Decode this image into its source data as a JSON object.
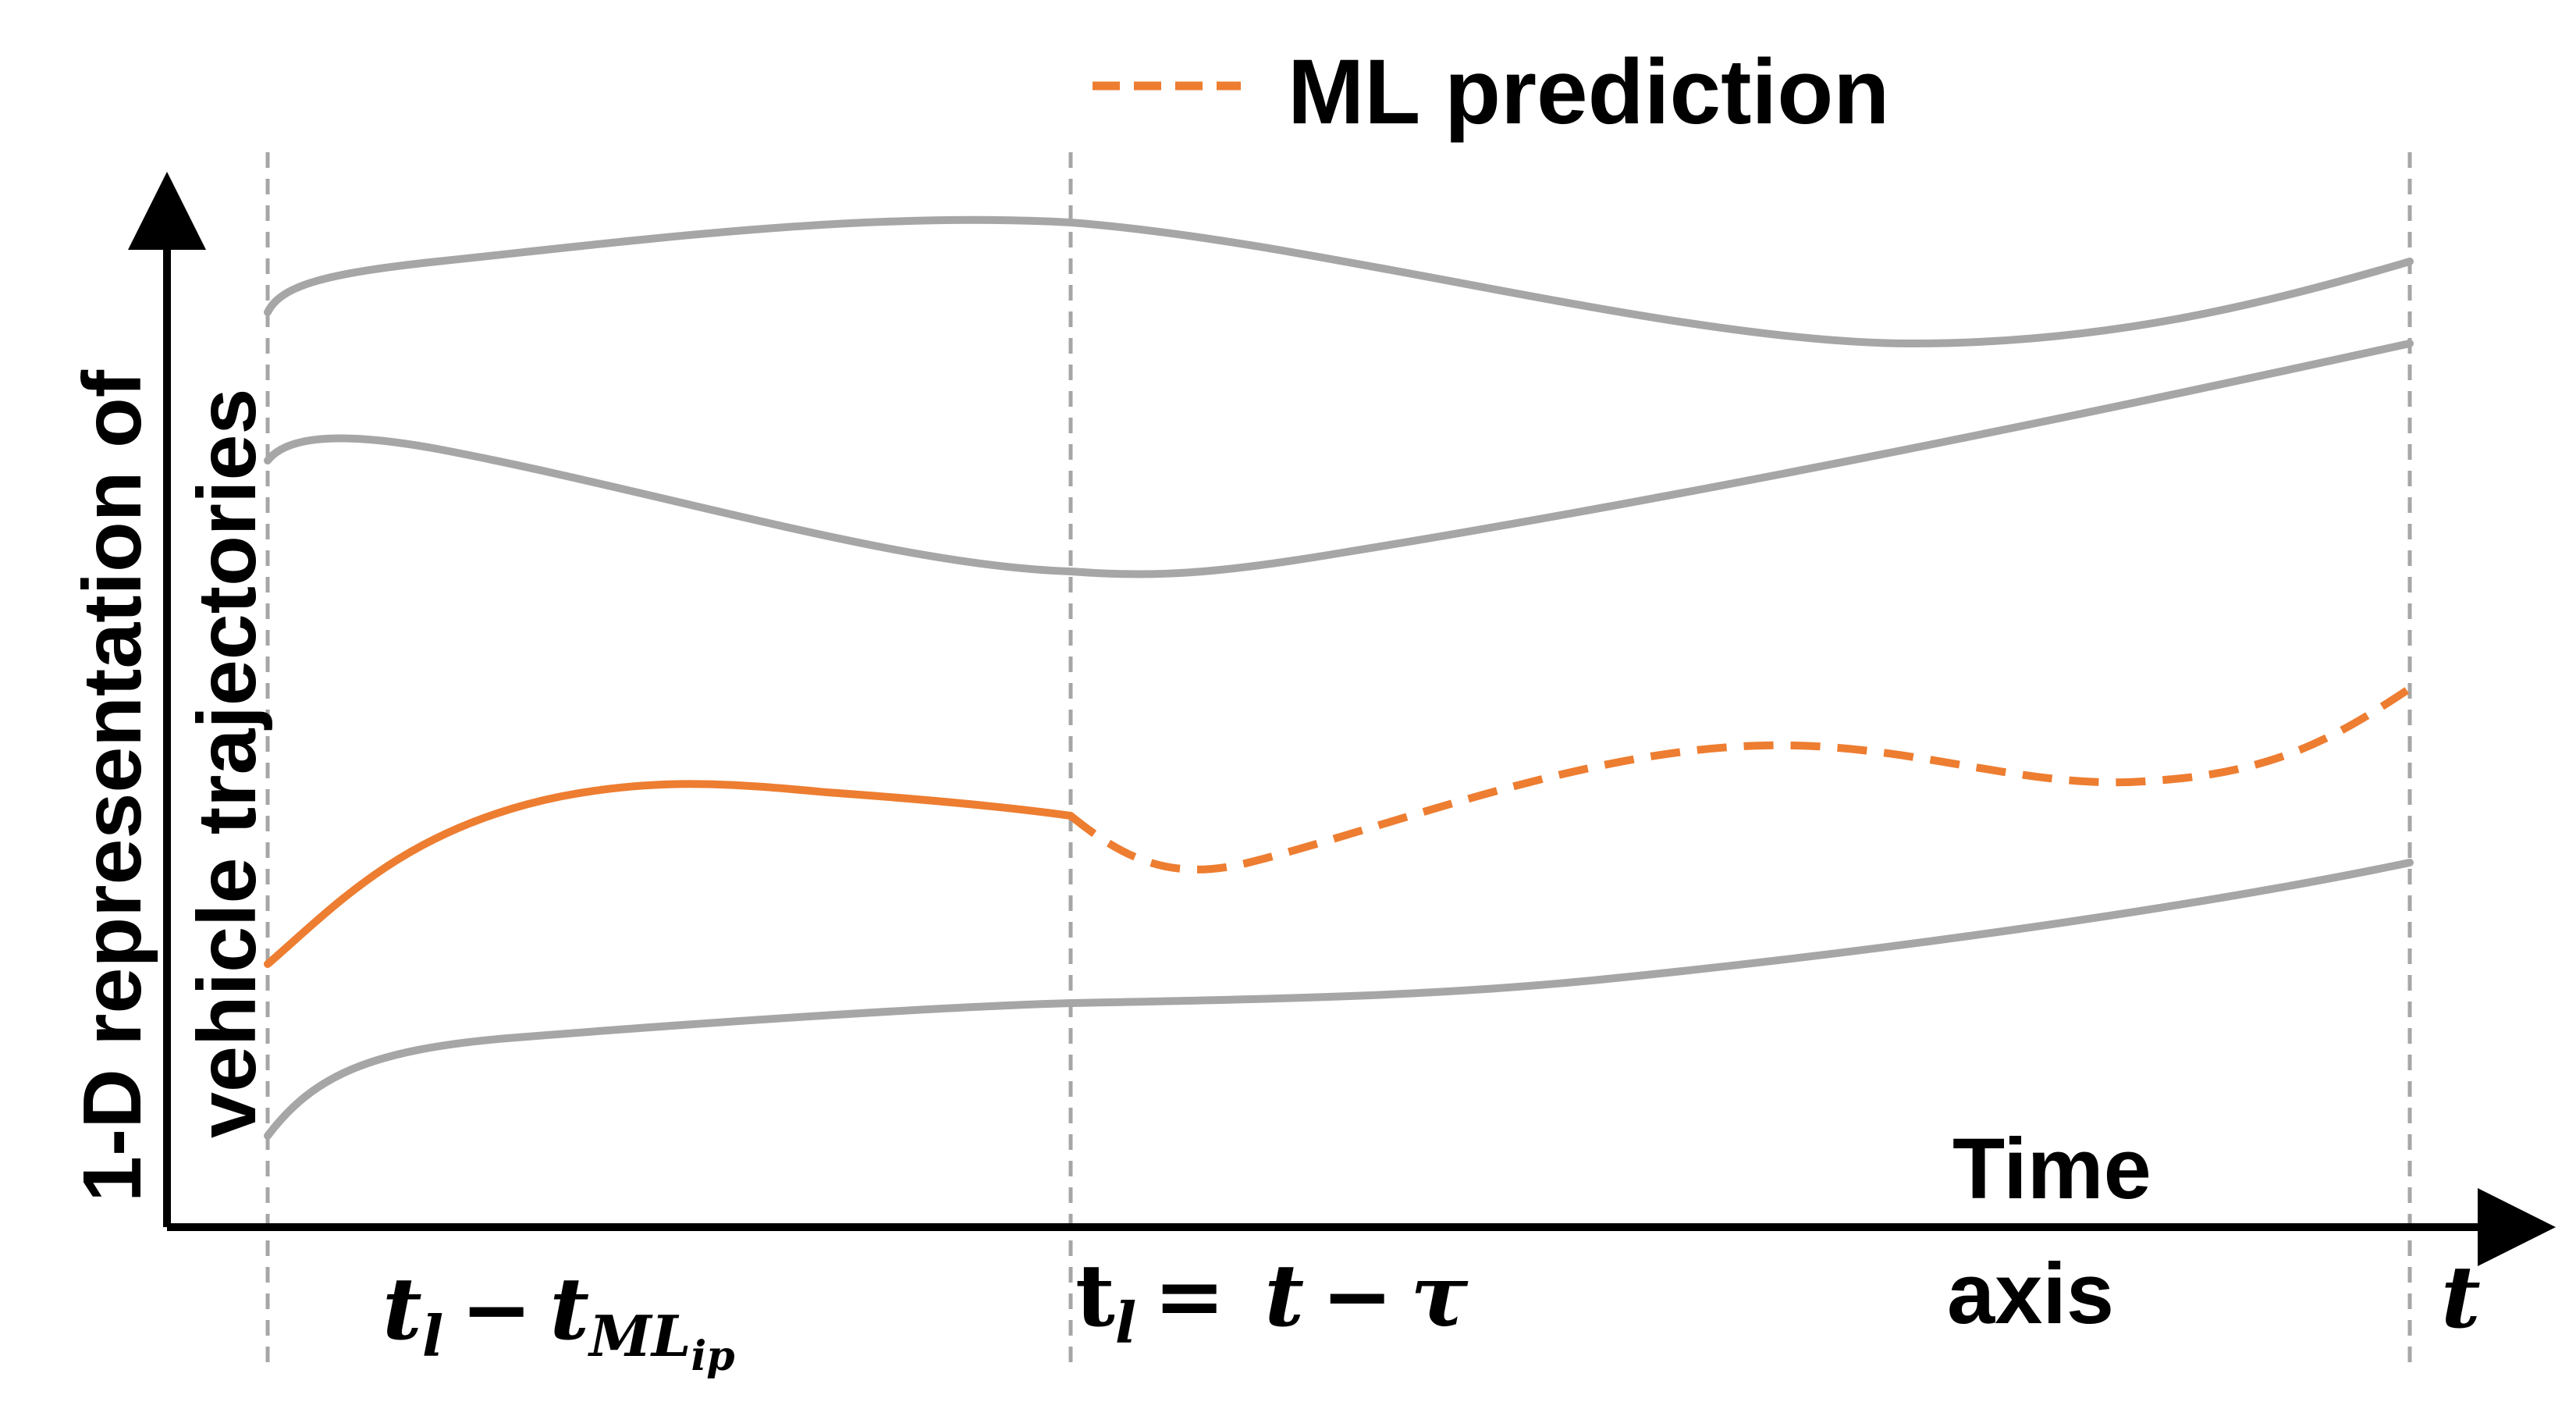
{
  "diagram": {
    "legend": {
      "label": "ML prediction",
      "line_style": "dashed"
    },
    "y_axis_label": {
      "line1": "1-D representation of",
      "line2": "vehicle trajectories"
    },
    "x_axis_label": {
      "line1": "Time",
      "line2": "axis"
    },
    "ticks": {
      "left": {
        "base": "t",
        "base_sub": "l",
        "operator": "−",
        "term": "t",
        "term_sub": "ML",
        "term_subsub": "ip"
      },
      "middle": {
        "base": "t",
        "base_sub": "l",
        "equals": "=",
        "rhs_t": "t",
        "minus": "−",
        "rhs_tau": "τ"
      },
      "right": {
        "label": "t"
      }
    },
    "trajectories": [
      {
        "name": "gray-trajectory-1",
        "color": "#A6A6A6",
        "style": "solid"
      },
      {
        "name": "gray-trajectory-2",
        "color": "#A6A6A6",
        "style": "solid"
      },
      {
        "name": "orange-trajectory-observed",
        "color": "#ED7D31",
        "style": "solid"
      },
      {
        "name": "orange-trajectory-predicted",
        "color": "#ED7D31",
        "style": "dashed"
      },
      {
        "name": "gray-trajectory-3",
        "color": "#A6A6A6",
        "style": "solid"
      }
    ],
    "colors": {
      "gray": "#A6A6A6",
      "orange": "#ED7D31",
      "guide": "#A6A6A6",
      "axis": "#000000"
    }
  }
}
